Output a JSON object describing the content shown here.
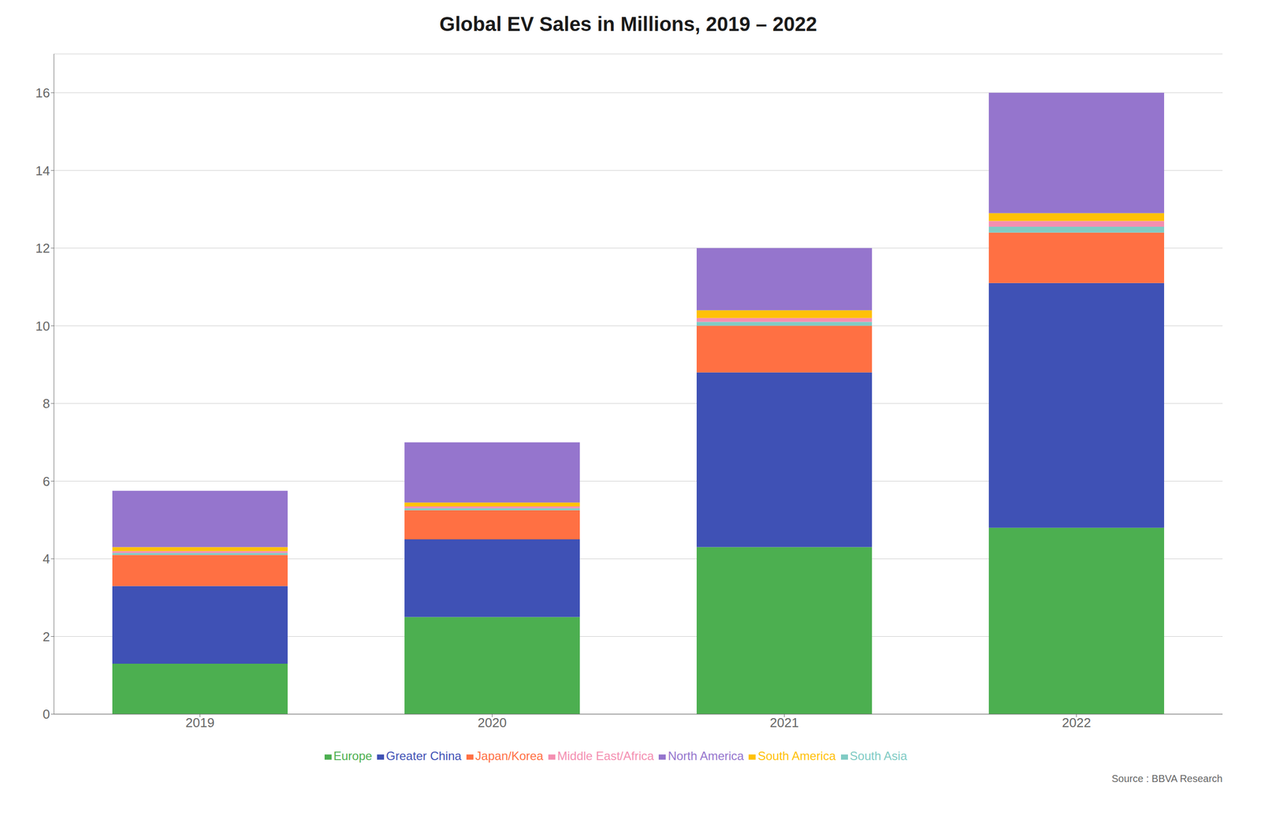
{
  "chart_data": {
    "type": "bar",
    "title": "Global EV Sales in Millions, 2019 – 2022",
    "annotations": [
      "Source : BBVA Research"
    ],
    "categories": [
      "2019",
      "2020",
      "2021",
      "2022"
    ],
    "stacked": true,
    "series": [
      {
        "name": "Europe",
        "color": "#4caf50",
        "values": [
          1.3,
          2.5,
          4.3,
          4.8
        ]
      },
      {
        "name": "Greater China",
        "color": "#3f51b5",
        "values": [
          2.0,
          2.0,
          4.5,
          6.3
        ]
      },
      {
        "name": "Japan/Korea",
        "color": "#ff7043",
        "values": [
          0.8,
          0.75,
          1.2,
          1.3
        ]
      },
      {
        "name": "South Asia",
        "color": "#80cbc4",
        "values": [
          0.05,
          0.05,
          0.1,
          0.15
        ]
      },
      {
        "name": "Middle East/Africa",
        "color": "#f48fb1",
        "values": [
          0.05,
          0.05,
          0.1,
          0.15
        ]
      },
      {
        "name": "South America",
        "color": "#ffc107",
        "values": [
          0.1,
          0.1,
          0.2,
          0.2
        ]
      },
      {
        "name": "North America",
        "color": "#9575cd",
        "values": [
          1.45,
          1.55,
          1.6,
          3.1
        ]
      }
    ],
    "ylim": [
      0,
      17
    ],
    "yticks": [
      0,
      2,
      4,
      6,
      8,
      10,
      12,
      14,
      16
    ],
    "grid": true,
    "legend": "bottom"
  }
}
